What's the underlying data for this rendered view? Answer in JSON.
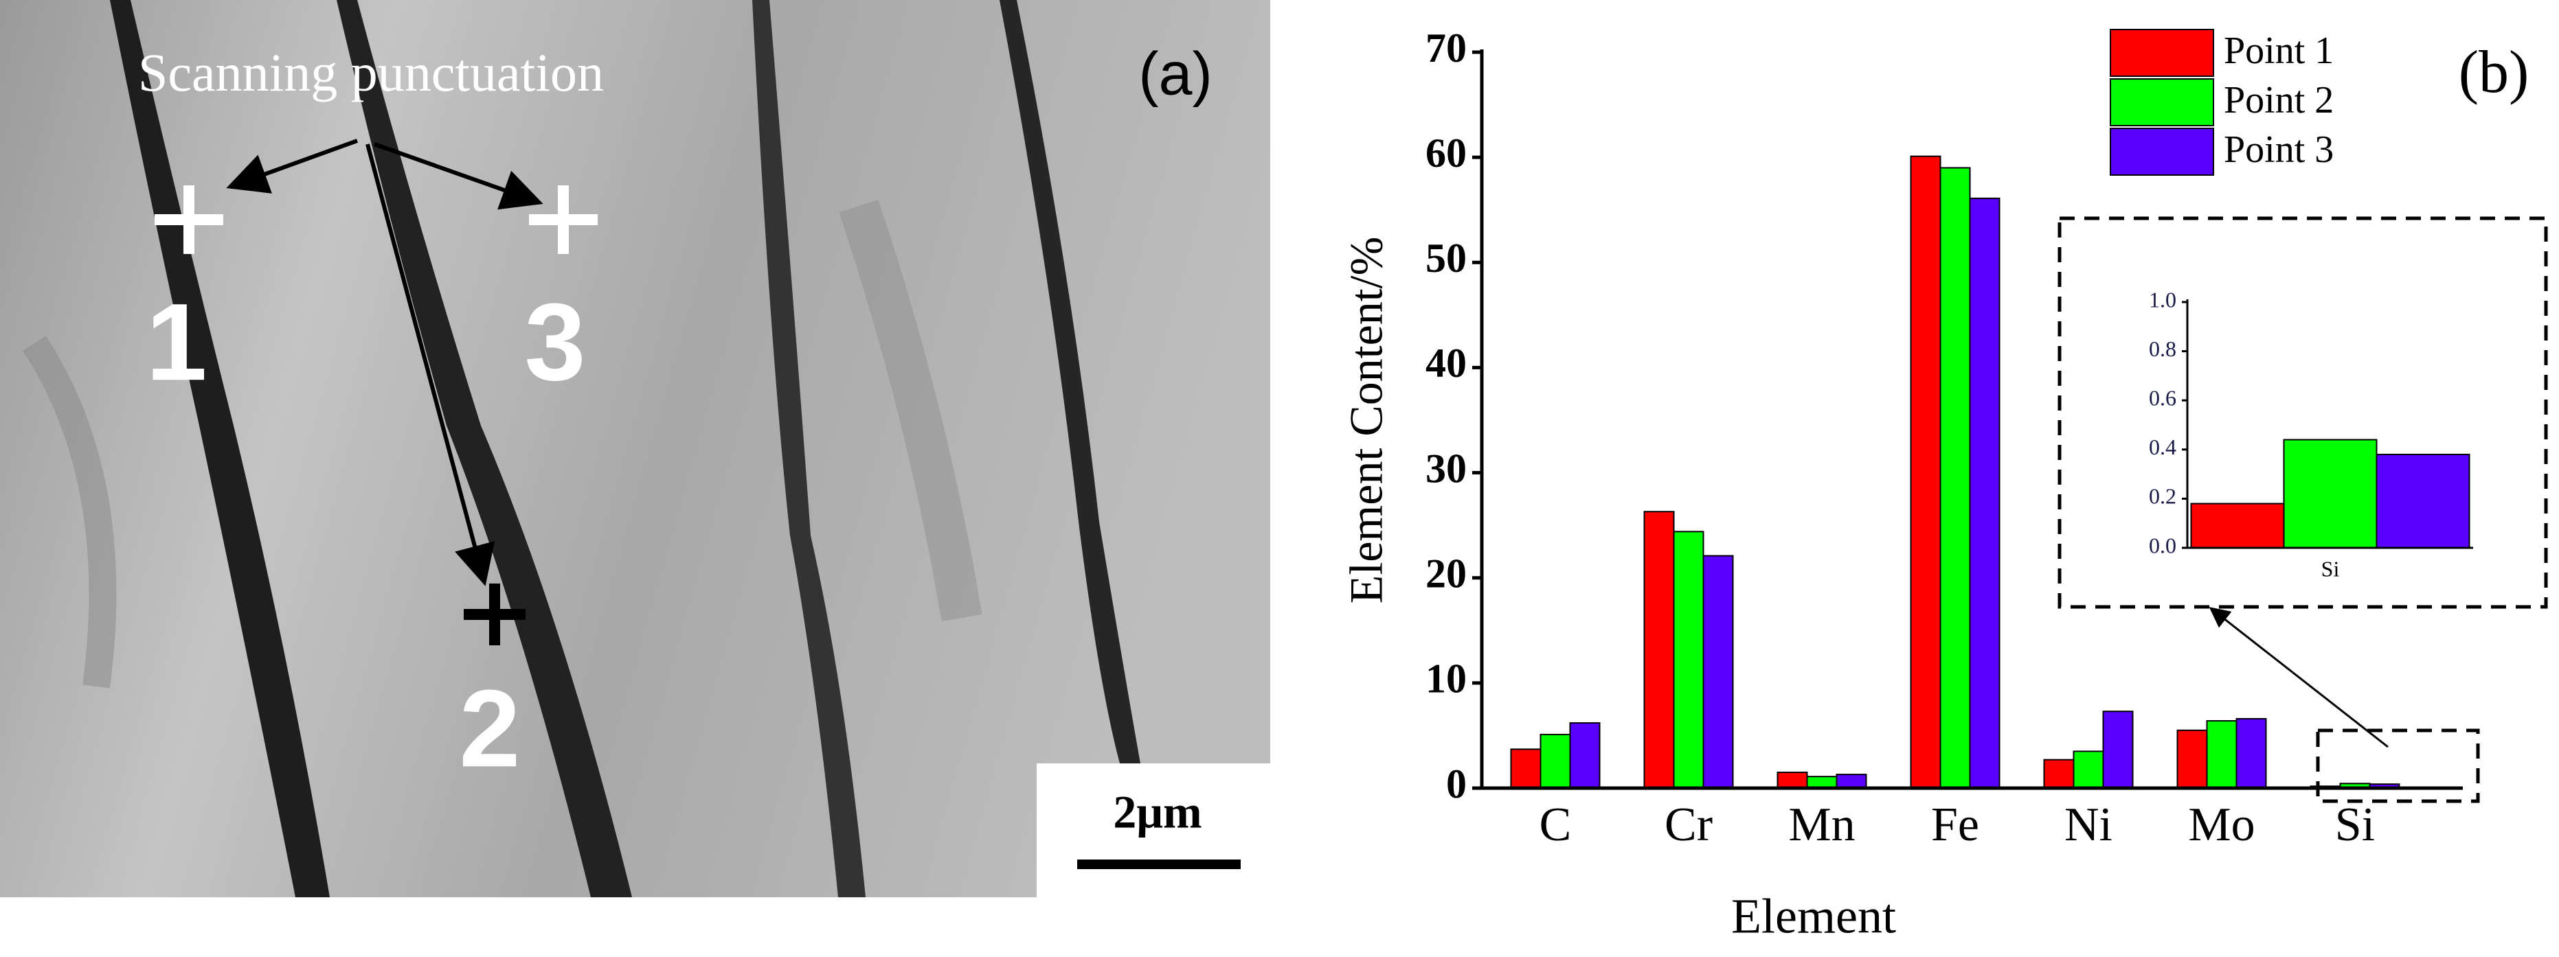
{
  "panel_a": {
    "caption": "Scanning punctuation",
    "label": "(a)",
    "points": [
      "1",
      "2",
      "3"
    ],
    "scale_bar": "2μm"
  },
  "chart_data": [
    {
      "type": "bar",
      "panel_label": "(b)",
      "x_label": "Element",
      "y_label": "Element Content/%",
      "categories": [
        "C",
        "Cr",
        "Mn",
        "Fe",
        "Ni",
        "Mo",
        "Si"
      ],
      "series": [
        {
          "name": "Point 1",
          "color": "#ff0000",
          "values": [
            3.7,
            26.3,
            1.5,
            60.1,
            2.7,
            5.5,
            0.18
          ]
        },
        {
          "name": "Point 2",
          "color": "#00ff00",
          "values": [
            5.1,
            24.4,
            1.1,
            59.0,
            3.5,
            6.4,
            0.44
          ]
        },
        {
          "name": "Point 3",
          "color": "#5a00ff",
          "values": [
            6.2,
            22.1,
            1.3,
            56.1,
            7.3,
            6.6,
            0.38
          ]
        }
      ],
      "ylim": [
        0,
        70
      ],
      "yticks": [
        0,
        10,
        20,
        30,
        40,
        50,
        60,
        70
      ],
      "legend": "top-right"
    },
    {
      "type": "bar",
      "categories": [
        "Si"
      ],
      "series": [
        {
          "color": "#ff0000",
          "values": [
            0.18
          ]
        },
        {
          "color": "#00ff00",
          "values": [
            0.44
          ]
        },
        {
          "color": "#5a00ff",
          "values": [
            0.38
          ]
        }
      ],
      "ylim": [
        0,
        1
      ],
      "yticks": [
        {
          "value": 0,
          "label": "0.0"
        },
        {
          "value": 0.2,
          "label": "0.2"
        },
        {
          "value": 0.4,
          "label": "0.4"
        },
        {
          "value": 0.6,
          "label": "0.6"
        },
        {
          "value": 0.8,
          "label": "0.8"
        },
        {
          "value": 1,
          "label": "1.0"
        }
      ]
    }
  ]
}
